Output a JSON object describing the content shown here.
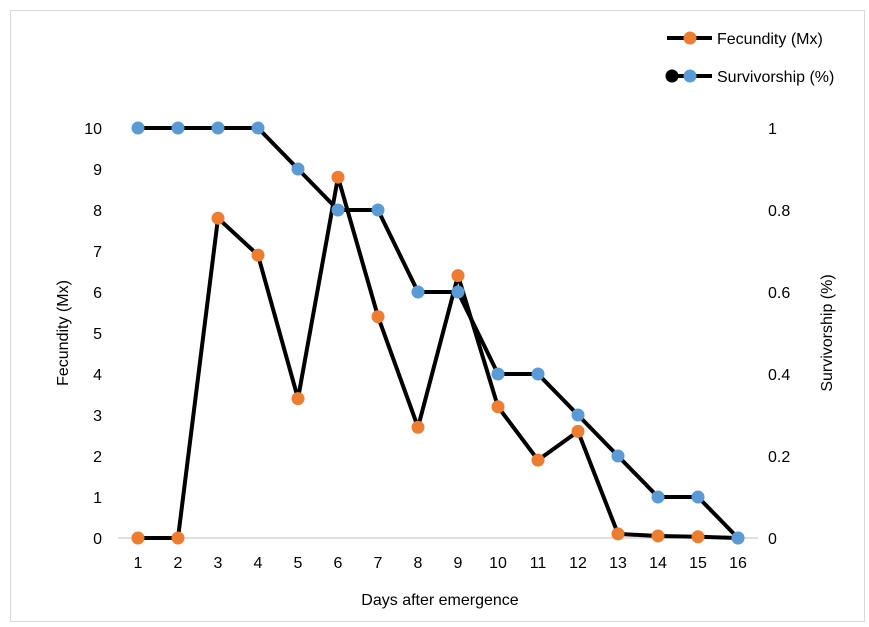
{
  "chart_data": {
    "type": "line",
    "xlabel": "Days after emergence",
    "ylabel_left": "Fecundity (Mx)",
    "ylabel_right": "Survivorship (%)",
    "x": [
      1,
      2,
      3,
      4,
      5,
      6,
      7,
      8,
      9,
      10,
      11,
      12,
      13,
      14,
      15,
      16
    ],
    "xlim": [
      1,
      16
    ],
    "ylim_left": [
      0,
      10
    ],
    "ylim_right": [
      0,
      1
    ],
    "yticks_left": [
      "0",
      "1",
      "2",
      "3",
      "4",
      "5",
      "6",
      "7",
      "8",
      "9",
      "10"
    ],
    "yticks_right": [
      "0",
      "0.2",
      "0.4",
      "0.6",
      "0.8",
      "1"
    ],
    "grid": false,
    "legend_position": "top-right",
    "series": [
      {
        "name": "Fecundity (Mx)",
        "axis": "left",
        "marker_color": "#ED7D31",
        "line_color": "#000000",
        "values": [
          0,
          0,
          7.8,
          6.9,
          3.4,
          8.8,
          5.4,
          2.7,
          6.4,
          3.2,
          1.9,
          2.6,
          0.1,
          0.05,
          0.03,
          0
        ]
      },
      {
        "name": "Survivorship (%)",
        "axis": "right",
        "marker_color": "#5B9BD5",
        "legend_marker_color": "#000000",
        "line_color": "#000000",
        "values": [
          1,
          1,
          1,
          1,
          0.9,
          0.8,
          0.8,
          0.6,
          0.6,
          0.4,
          0.4,
          0.3,
          0.2,
          0.1,
          0.1,
          0
        ]
      }
    ]
  }
}
